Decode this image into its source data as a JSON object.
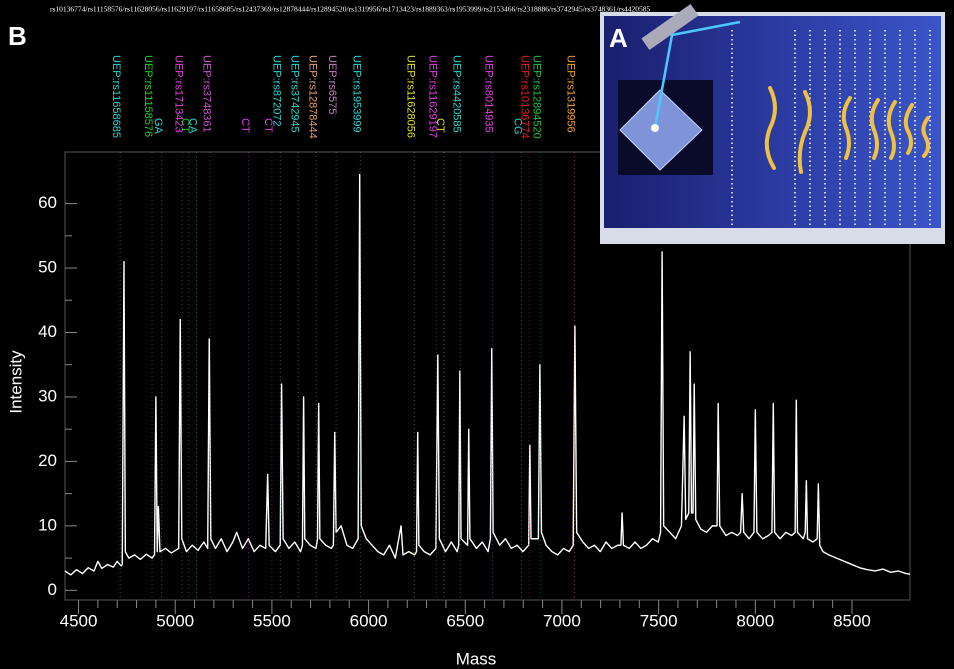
{
  "chart_data": {
    "type": "line",
    "panel_label": "B",
    "inset_label": "A",
    "header": "rs10136774/rs11158576/rs11628056/rs11629197/rs11658685/rs12437369/rs12878444/rs12894520/rs1319956/rs1713423/rs1889363/rs1953999/rs2153466/rs2318886/rs3742945/rs3748361/rs4420585",
    "x_label": "Mass",
    "y_label": "Intensity",
    "color": "#ffffff",
    "xlim": [
      4430,
      8800
    ],
    "ylim": [
      -1.5,
      68
    ],
    "xticks": [
      4500,
      5000,
      5500,
      6000,
      6500,
      7000,
      7500,
      8000,
      8500
    ],
    "yticks": [
      0,
      10,
      20,
      30,
      40,
      50,
      60
    ],
    "x": [
      4430,
      4460,
      4490,
      4520,
      4550,
      4580,
      4600,
      4620,
      4650,
      4680,
      4700,
      4720,
      4726,
      4735,
      4742,
      4760,
      4790,
      4820,
      4850,
      4880,
      4893,
      4900,
      4907,
      4913,
      4921,
      4950,
      4980,
      5018,
      5026,
      5034,
      5058,
      5088,
      5118,
      5148,
      5168,
      5176,
      5184,
      5208,
      5238,
      5268,
      5298,
      5318,
      5348,
      5378,
      5408,
      5438,
      5468,
      5478,
      5486,
      5518,
      5543,
      5550,
      5558,
      5588,
      5618,
      5648,
      5658,
      5664,
      5670,
      5698,
      5728,
      5736,
      5742,
      5748,
      5778,
      5808,
      5818,
      5825,
      5832,
      5858,
      5888,
      5918,
      5946,
      5954,
      5962,
      5988,
      6018,
      6048,
      6078,
      6108,
      6138,
      6168,
      6178,
      6208,
      6238,
      6248,
      6254,
      6260,
      6288,
      6318,
      6348,
      6358,
      6366,
      6398,
      6428,
      6458,
      6466,
      6472,
      6478,
      6512,
      6518,
      6524,
      6558,
      6588,
      6618,
      6630,
      6637,
      6644,
      6678,
      6708,
      6738,
      6768,
      6798,
      6828,
      6834,
      6840,
      6878,
      6886,
      6894,
      6918,
      6948,
      6978,
      7008,
      7038,
      7058,
      7067,
      7076,
      7108,
      7138,
      7168,
      7198,
      7228,
      7258,
      7288,
      7305,
      7311,
      7318,
      7348,
      7378,
      7408,
      7438,
      7468,
      7498,
      7510,
      7518,
      7526,
      7558,
      7588,
      7618,
      7632,
      7640,
      7656,
      7663,
      7670,
      7678,
      7684,
      7692,
      7718,
      7748,
      7778,
      7802,
      7808,
      7816,
      7848,
      7878,
      7908,
      7924,
      7932,
      7940,
      7968,
      7993,
      8000,
      8008,
      8038,
      8068,
      8086,
      8093,
      8100,
      8128,
      8158,
      8188,
      8206,
      8212,
      8218,
      8248,
      8258,
      8264,
      8270,
      8298,
      8320,
      8326,
      8333,
      8350,
      8380,
      8420,
      8460,
      8500,
      8540,
      8580,
      8620,
      8660,
      8700,
      8740,
      8780,
      8800
    ],
    "values": [
      3,
      2.4,
      3.2,
      2.6,
      3.5,
      3,
      4.5,
      3.4,
      4,
      3.6,
      4.5,
      3.8,
      4,
      51,
      6,
      5,
      5.5,
      4.8,
      5.6,
      5,
      5.5,
      30,
      6,
      13,
      6,
      6.5,
      5.8,
      6.5,
      42,
      8,
      6,
      7,
      6.2,
      7.5,
      6.5,
      39,
      8,
      6.5,
      8,
      6,
      7.5,
      9,
      6.5,
      8,
      6,
      7,
      6.5,
      18,
      7,
      6,
      7,
      32,
      8,
      6.5,
      7.5,
      6,
      7,
      30,
      8,
      7,
      6.5,
      8,
      29,
      8,
      7,
      6.5,
      7,
      24.5,
      9,
      10,
      7,
      6.5,
      8,
      64.5,
      10,
      8,
      7,
      6,
      5.5,
      7,
      5,
      10,
      5.5,
      6,
      5.5,
      6,
      24.5,
      7,
      6,
      5.5,
      6.5,
      36.5,
      8,
      6,
      7.5,
      6,
      7,
      34,
      8,
      7,
      25,
      8,
      6.5,
      7.5,
      6,
      8,
      37.5,
      9,
      7,
      8,
      6.5,
      7,
      6,
      7,
      22.5,
      8,
      8,
      35,
      9,
      7,
      6,
      5.5,
      6.5,
      6,
      7,
      41,
      9,
      7.5,
      6.5,
      7,
      6,
      7.5,
      6.5,
      7,
      7,
      12,
      7,
      6.5,
      7.5,
      6.5,
      7,
      8,
      7.5,
      9,
      52.5,
      10,
      9,
      8,
      10,
      27,
      11,
      12,
      37,
      12,
      12,
      32,
      11,
      9.5,
      9,
      10,
      10,
      29,
      10,
      8.5,
      9,
      8.5,
      9,
      15,
      9,
      8,
      9,
      28,
      9,
      8,
      8.5,
      9,
      29,
      9,
      8,
      9,
      8.5,
      9,
      29.5,
      9,
      8,
      9,
      17,
      8,
      7.5,
      8,
      16.5,
      7,
      6,
      5.5,
      5,
      4.5,
      4,
      3.5,
      3.2,
      3,
      3.3,
      2.8,
      3,
      2.6,
      2.5
    ],
    "markers": [
      {
        "label": "UEP:rs11658685",
        "color": "#2ad4d4",
        "x": 4715
      },
      {
        "label": "UEP:rs11158576",
        "color": "#22d022",
        "x": 4880
      },
      {
        "label": "UEP:rs1713423",
        "color": "#e040e0",
        "x": 5036
      },
      {
        "label": "UEP:rs3748361",
        "color": "#d050d0",
        "x": 5181
      },
      {
        "label": "UEP:rs872072",
        "color": "#2ad4d4",
        "x": 5543
      },
      {
        "label": "UEP:rs3742945",
        "color": "#2ad4d4",
        "x": 5636
      },
      {
        "label": "UEP:rs12878444",
        "color": "#e0a070",
        "x": 5729
      },
      {
        "label": "UEP:rs6575",
        "color": "#c080c0",
        "x": 5832
      },
      {
        "label": "UEP:rs1953999",
        "color": "#2ad4d4",
        "x": 5957
      },
      {
        "label": "UEP:rs11628056",
        "color": "#e0e020",
        "x": 6236
      },
      {
        "label": "UEP:rs11629197",
        "color": "#e040e0",
        "x": 6350
      },
      {
        "label": "UEP:rs4420585",
        "color": "#2ad4d4",
        "x": 6474
      },
      {
        "label": "UEP:rs8014935",
        "color": "#e040e0",
        "x": 6640
      },
      {
        "label": "UEP:rs10136774",
        "color": "#e02020",
        "x": 6826
      },
      {
        "label": "UEP:rs12894520",
        "color": "#20c040",
        "x": 6888
      },
      {
        "label": "UEP:rs1319956",
        "color": "#f0a020",
        "x": 7064
      }
    ],
    "allele_labels": [
      {
        "label": "GA",
        "color": "#2ad4d4",
        "x": 4930
      },
      {
        "label": "CT",
        "color": "#22d022",
        "x": 5070
      },
      {
        "label": "CA",
        "color": "#2ad4d4",
        "x": 5110
      },
      {
        "label": "CT",
        "color": "#e040e0",
        "x": 5380
      },
      {
        "label": "CT",
        "color": "#e040e0",
        "x": 5500
      },
      {
        "label": "CT",
        "color": "#e0e020",
        "x": 6390
      },
      {
        "label": "CG",
        "color": "#2ad4d4",
        "x": 6790
      }
    ]
  }
}
